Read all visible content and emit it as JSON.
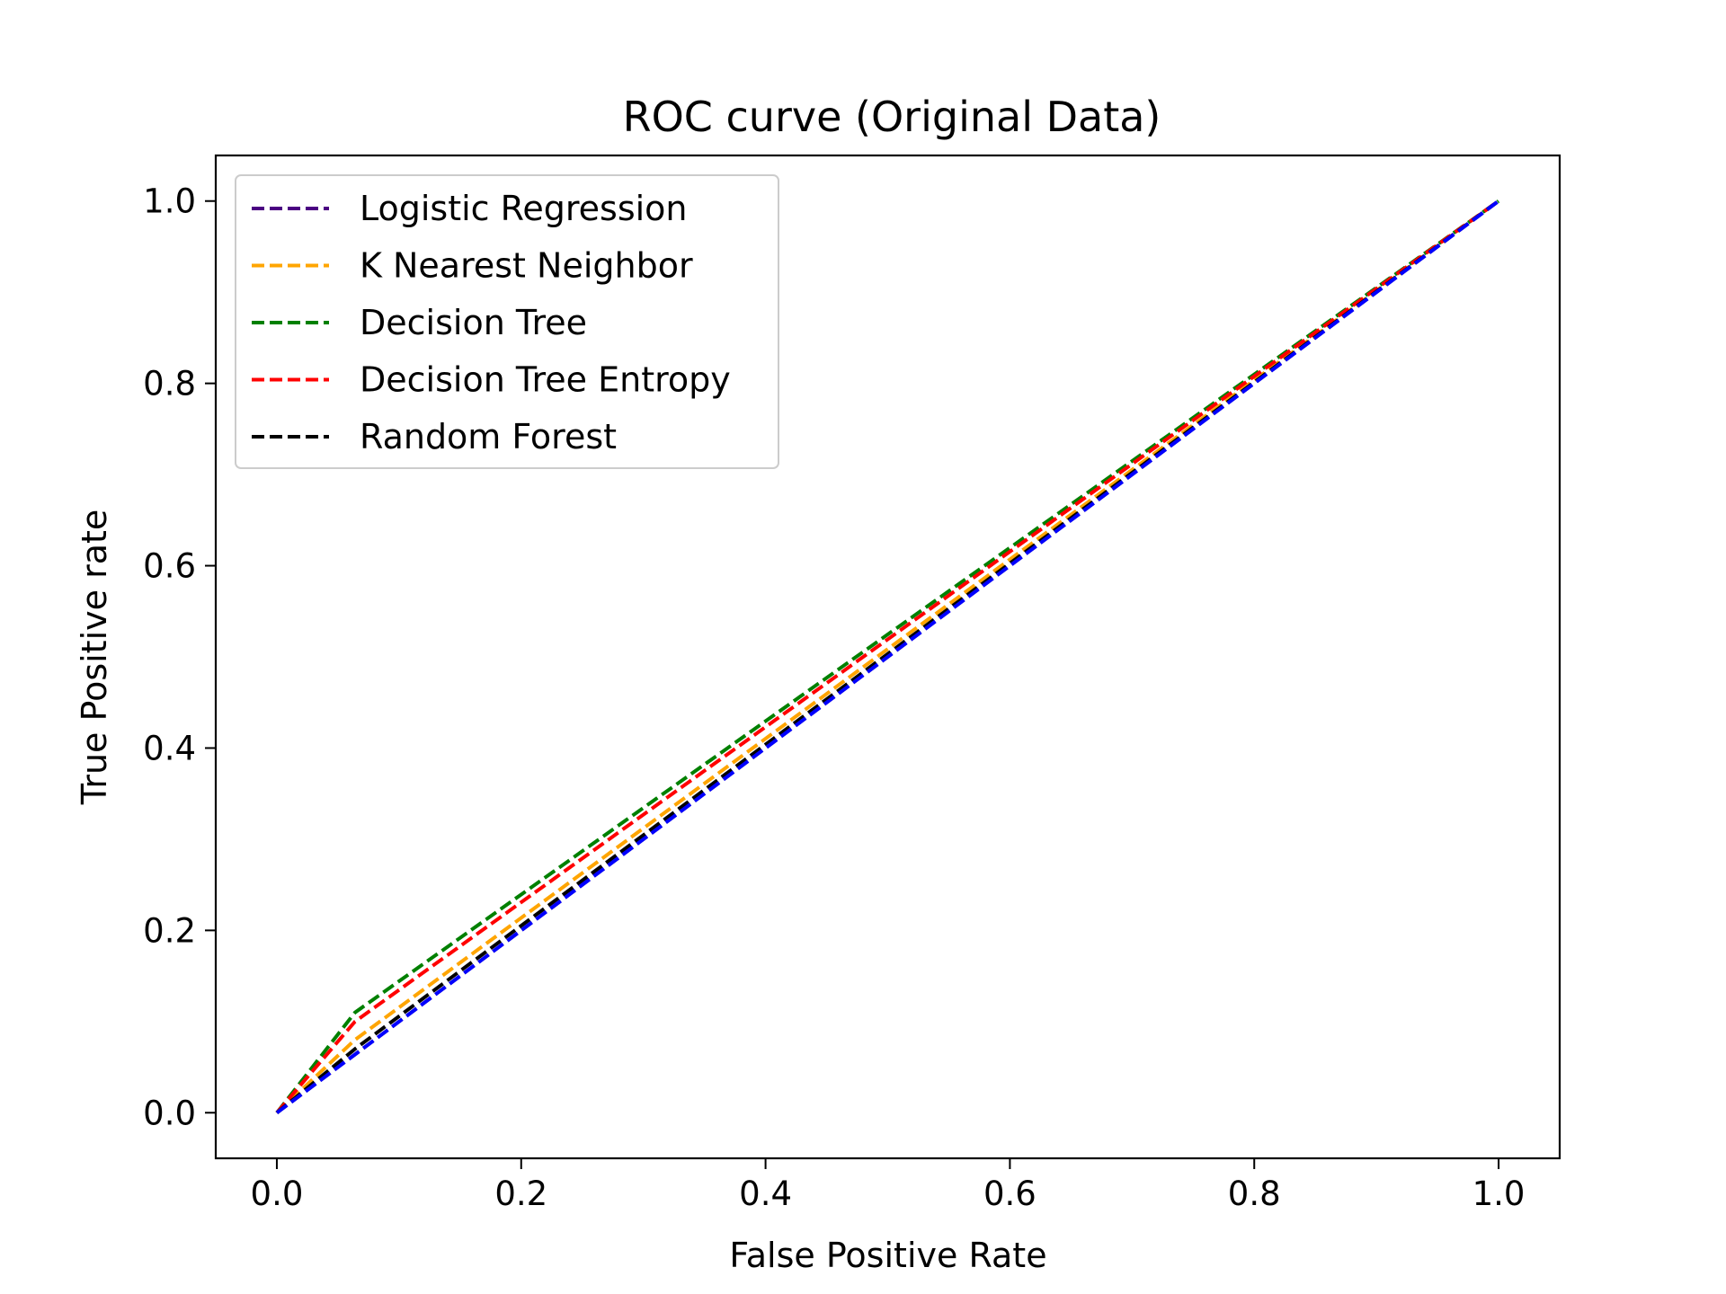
{
  "chart_data": {
    "type": "line",
    "title": "ROC curve (Original Data)",
    "xlabel": "False Positive Rate",
    "ylabel": "True Positive rate",
    "xlim": [
      -0.05,
      1.05
    ],
    "ylim": [
      -0.05,
      1.05
    ],
    "xticks": [
      "0.0",
      "0.2",
      "0.4",
      "0.6",
      "0.8",
      "1.0"
    ],
    "yticks": [
      "0.0",
      "0.2",
      "0.4",
      "0.6",
      "0.8",
      "1.0"
    ],
    "xtick_values": [
      0,
      0.2,
      0.4,
      0.6,
      0.8,
      1.0
    ],
    "ytick_values": [
      0,
      0.2,
      0.4,
      0.6,
      0.8,
      1.0
    ],
    "grid": false,
    "legend_position": "top-left",
    "series": [
      {
        "name": "Logistic Regression",
        "color": "#4b0082",
        "linestyle": "dashed",
        "x": [
          0,
          1
        ],
        "y": [
          0,
          1
        ]
      },
      {
        "name": "K Nearest Neighbor",
        "color": "#ffa500",
        "linestyle": "dashed",
        "x": [
          0,
          0.064,
          1
        ],
        "y": [
          0,
          0.08,
          1
        ]
      },
      {
        "name": "Decision Tree",
        "color": "#008000",
        "linestyle": "dashed",
        "x": [
          0,
          0.064,
          1
        ],
        "y": [
          0,
          0.11,
          1
        ]
      },
      {
        "name": "Decision Tree Entropy",
        "color": "#ff0000",
        "linestyle": "dashed",
        "x": [
          0,
          0.064,
          1
        ],
        "y": [
          0,
          0.1,
          1
        ]
      },
      {
        "name": "Random Forest",
        "color": "#000000",
        "linestyle": "dashed",
        "x": [
          0,
          0.064,
          1
        ],
        "y": [
          0,
          0.07,
          1
        ]
      },
      {
        "color": "#0000ff",
        "linestyle": "dashed",
        "x": [
          0,
          1
        ],
        "y": [
          0,
          1
        ]
      }
    ]
  }
}
